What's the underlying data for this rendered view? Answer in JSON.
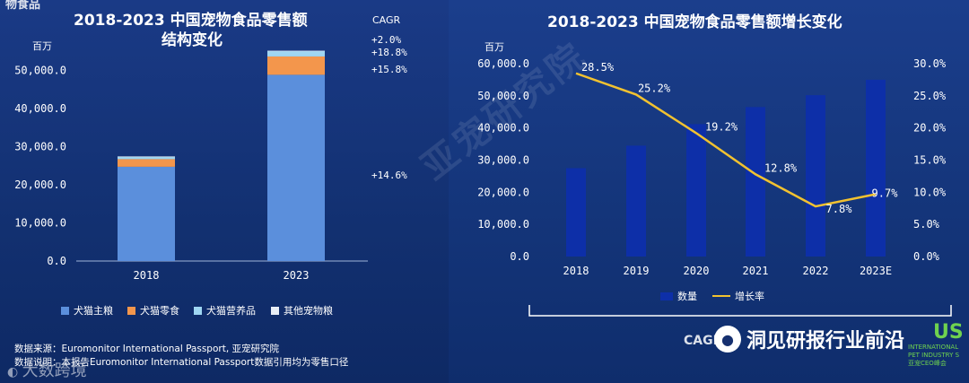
{
  "left_panel": {
    "partial_heading": "物食品",
    "title_line1": "2018-2023 中国宠物食品零售额",
    "title_line2": "结构变化",
    "unit": "百万",
    "cagr_label": "CAGR",
    "cagr_values": [
      "+2.0%",
      "+18.8%",
      "+15.8%",
      "+14.6%"
    ],
    "source_line1": "数据来源：Euromonitor International Passport, 亚宠研究院",
    "source_line2": "数据说明：本报告Euromonitor International Passport数据引用均为零售口径"
  },
  "right_panel": {
    "title": "2018-2023 中国宠物食品零售额增长变化",
    "unit_left": "百万",
    "watermark": "亚宠研究院",
    "partial_bottom": "CAGR",
    "wechat_text": "洞见研报行业前沿",
    "corner_logo_letters": "US",
    "corner_lines": [
      "INTERNATIONAL",
      "PET INDUSTRY S",
      "亚宠CEO峰会"
    ]
  },
  "bottom_watermark": "大数跨境",
  "chart_data": [
    {
      "type": "bar",
      "stacked": true,
      "title": "2018-2023 中国宠物食品零售额结构变化",
      "ylabel": "百万",
      "categories": [
        "2018",
        "2023"
      ],
      "ylim": [
        0,
        55000
      ],
      "yticks": [
        "0.0",
        "10,000.0",
        "20,000.0",
        "30,000.0",
        "40,000.0",
        "50,000.0"
      ],
      "ytick_values": [
        0,
        10000,
        20000,
        30000,
        40000,
        50000
      ],
      "series": [
        {
          "name": "犬猫主粮",
          "color": "#5b8fdc",
          "values": [
            24700,
            48800
          ]
        },
        {
          "name": "犬猫零食",
          "color": "#f3964c",
          "values": [
            2000,
            4800
          ]
        },
        {
          "name": "犬猫营养品",
          "color": "#9fd6f2",
          "values": [
            600,
            1400
          ]
        },
        {
          "name": "其他宠物粮",
          "color": "#e8eef6",
          "values": [
            100,
            100
          ]
        }
      ],
      "legend_position": "bottom"
    },
    {
      "type": "bar+line",
      "title": "2018-2023 中国宠物食品零售额增长变化",
      "categories": [
        "2018",
        "2019",
        "2020",
        "2021",
        "2022",
        "2023E"
      ],
      "bar_series": {
        "name": "数量",
        "color": "#0d2fa8",
        "values": [
          27500,
          34500,
          41200,
          46500,
          50200,
          55000
        ]
      },
      "line_series": {
        "name": "增长率",
        "color": "#f2c230",
        "values": [
          28.5,
          25.2,
          19.2,
          12.8,
          7.8,
          9.7
        ]
      },
      "line_labels": [
        "28.5%",
        "25.2%",
        "19.2%",
        "12.8%",
        "7.8%",
        "9.7%"
      ],
      "ylim_left": [
        0,
        60000
      ],
      "yticks_left": [
        "0.0",
        "10,000.0",
        "20,000.0",
        "30,000.0",
        "40,000.0",
        "50,000.0",
        "60,000.0"
      ],
      "ytick_values_left": [
        0,
        10000,
        20000,
        30000,
        40000,
        50000,
        60000
      ],
      "ylim_right": [
        0,
        30
      ],
      "yticks_right": [
        "0.0%",
        "5.0%",
        "10.0%",
        "15.0%",
        "20.0%",
        "25.0%",
        "30.0%"
      ],
      "ytick_values_right": [
        0,
        5,
        10,
        15,
        20,
        25,
        30
      ],
      "legend_position": "bottom"
    }
  ]
}
